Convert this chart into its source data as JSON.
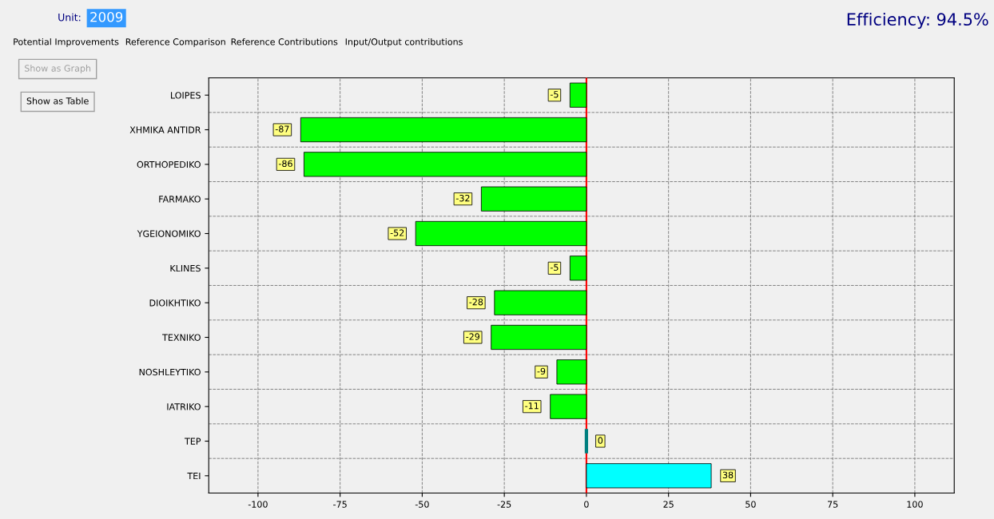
{
  "chart_data": {
    "type": "bar",
    "orientation": "horizontal",
    "title": "Efficiency: 94.5%",
    "categories": [
      "LOIPES",
      "XHMIKA ANTIDR",
      "ORTHOPEDIKO",
      "FARMAKO",
      "YGEIONOMIKO",
      "KLINES",
      "DIOIKHTIKO",
      "TEXNIKO",
      "NOSHLEYTIKO",
      "IATRIKO",
      "TEP",
      "TEI"
    ],
    "values": [
      -5,
      -87,
      -86,
      -32,
      -52,
      -5,
      -28,
      -29,
      -9,
      -11,
      0,
      38
    ],
    "colors": [
      "#00ff00",
      "#00ff00",
      "#00ff00",
      "#00ff00",
      "#00ff00",
      "#00ff00",
      "#00ff00",
      "#00ff00",
      "#00ff00",
      "#00ff00",
      "#007f7f",
      "#00ffff"
    ],
    "xlim": [
      -115,
      112
    ],
    "xticks": [
      -100,
      -75,
      -50,
      -25,
      0,
      25,
      50,
      75,
      100
    ],
    "grid": true,
    "data_labels": true,
    "ref_lines": [
      {
        "axis": "x",
        "value": 0,
        "label": null,
        "color": "#ff0000"
      }
    ],
    "annotations": [
      "Unit:",
      "2009",
      "Potential Improvements",
      "Reference Comparison",
      "Reference Contributions",
      "Input/Output contributions",
      "Show as Graph",
      "Show as Table"
    ]
  }
}
